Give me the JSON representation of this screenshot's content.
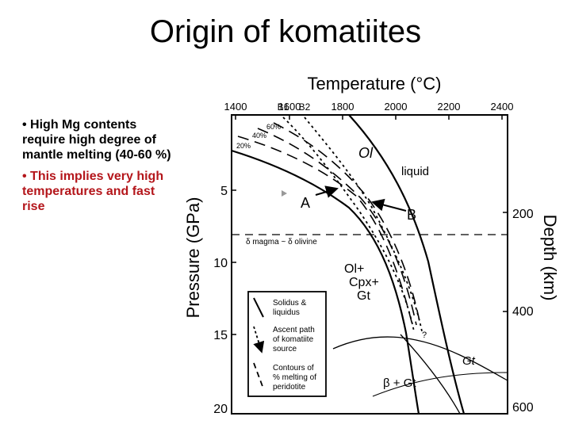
{
  "slide": {
    "title": "Origin of komatiites",
    "bullets": [
      "• High Mg contents require high degree of mantle melting (40-60 %)",
      "• This implies very high temperatures and fast rise"
    ]
  },
  "figure": {
    "top_axis_title": "Temperature (°C)",
    "top_ticks": [
      "1400",
      "1600",
      "1800",
      "2000",
      "2200",
      "2400"
    ],
    "b_labels": [
      "B1",
      "B2"
    ],
    "left_axis_title": "Pressure (GPa)",
    "left_ticks": [
      "5",
      "10",
      "15",
      "20"
    ],
    "right_axis_title": "Depth (km)",
    "right_ticks": [
      "200",
      "400",
      "600"
    ],
    "contour_labels": [
      "60%",
      "40%",
      "20%"
    ],
    "field_labels": {
      "ol": "Ol",
      "liquid": "liquid",
      "a": "A",
      "b": "B",
      "density": "δ magma ~ δ olivine",
      "ol_cpx_gt": [
        "Ol+",
        "Cpx+",
        "Gt"
      ],
      "question": "?",
      "gt": "Gt",
      "beta_gt": "β + Gt"
    },
    "legend": {
      "solidus": [
        "Solidus &",
        "liquidus"
      ],
      "ascent": [
        "Ascent path",
        "of komatiite",
        "source"
      ],
      "contours": [
        "Contours of",
        "% melting of",
        "peridotite"
      ]
    }
  }
}
